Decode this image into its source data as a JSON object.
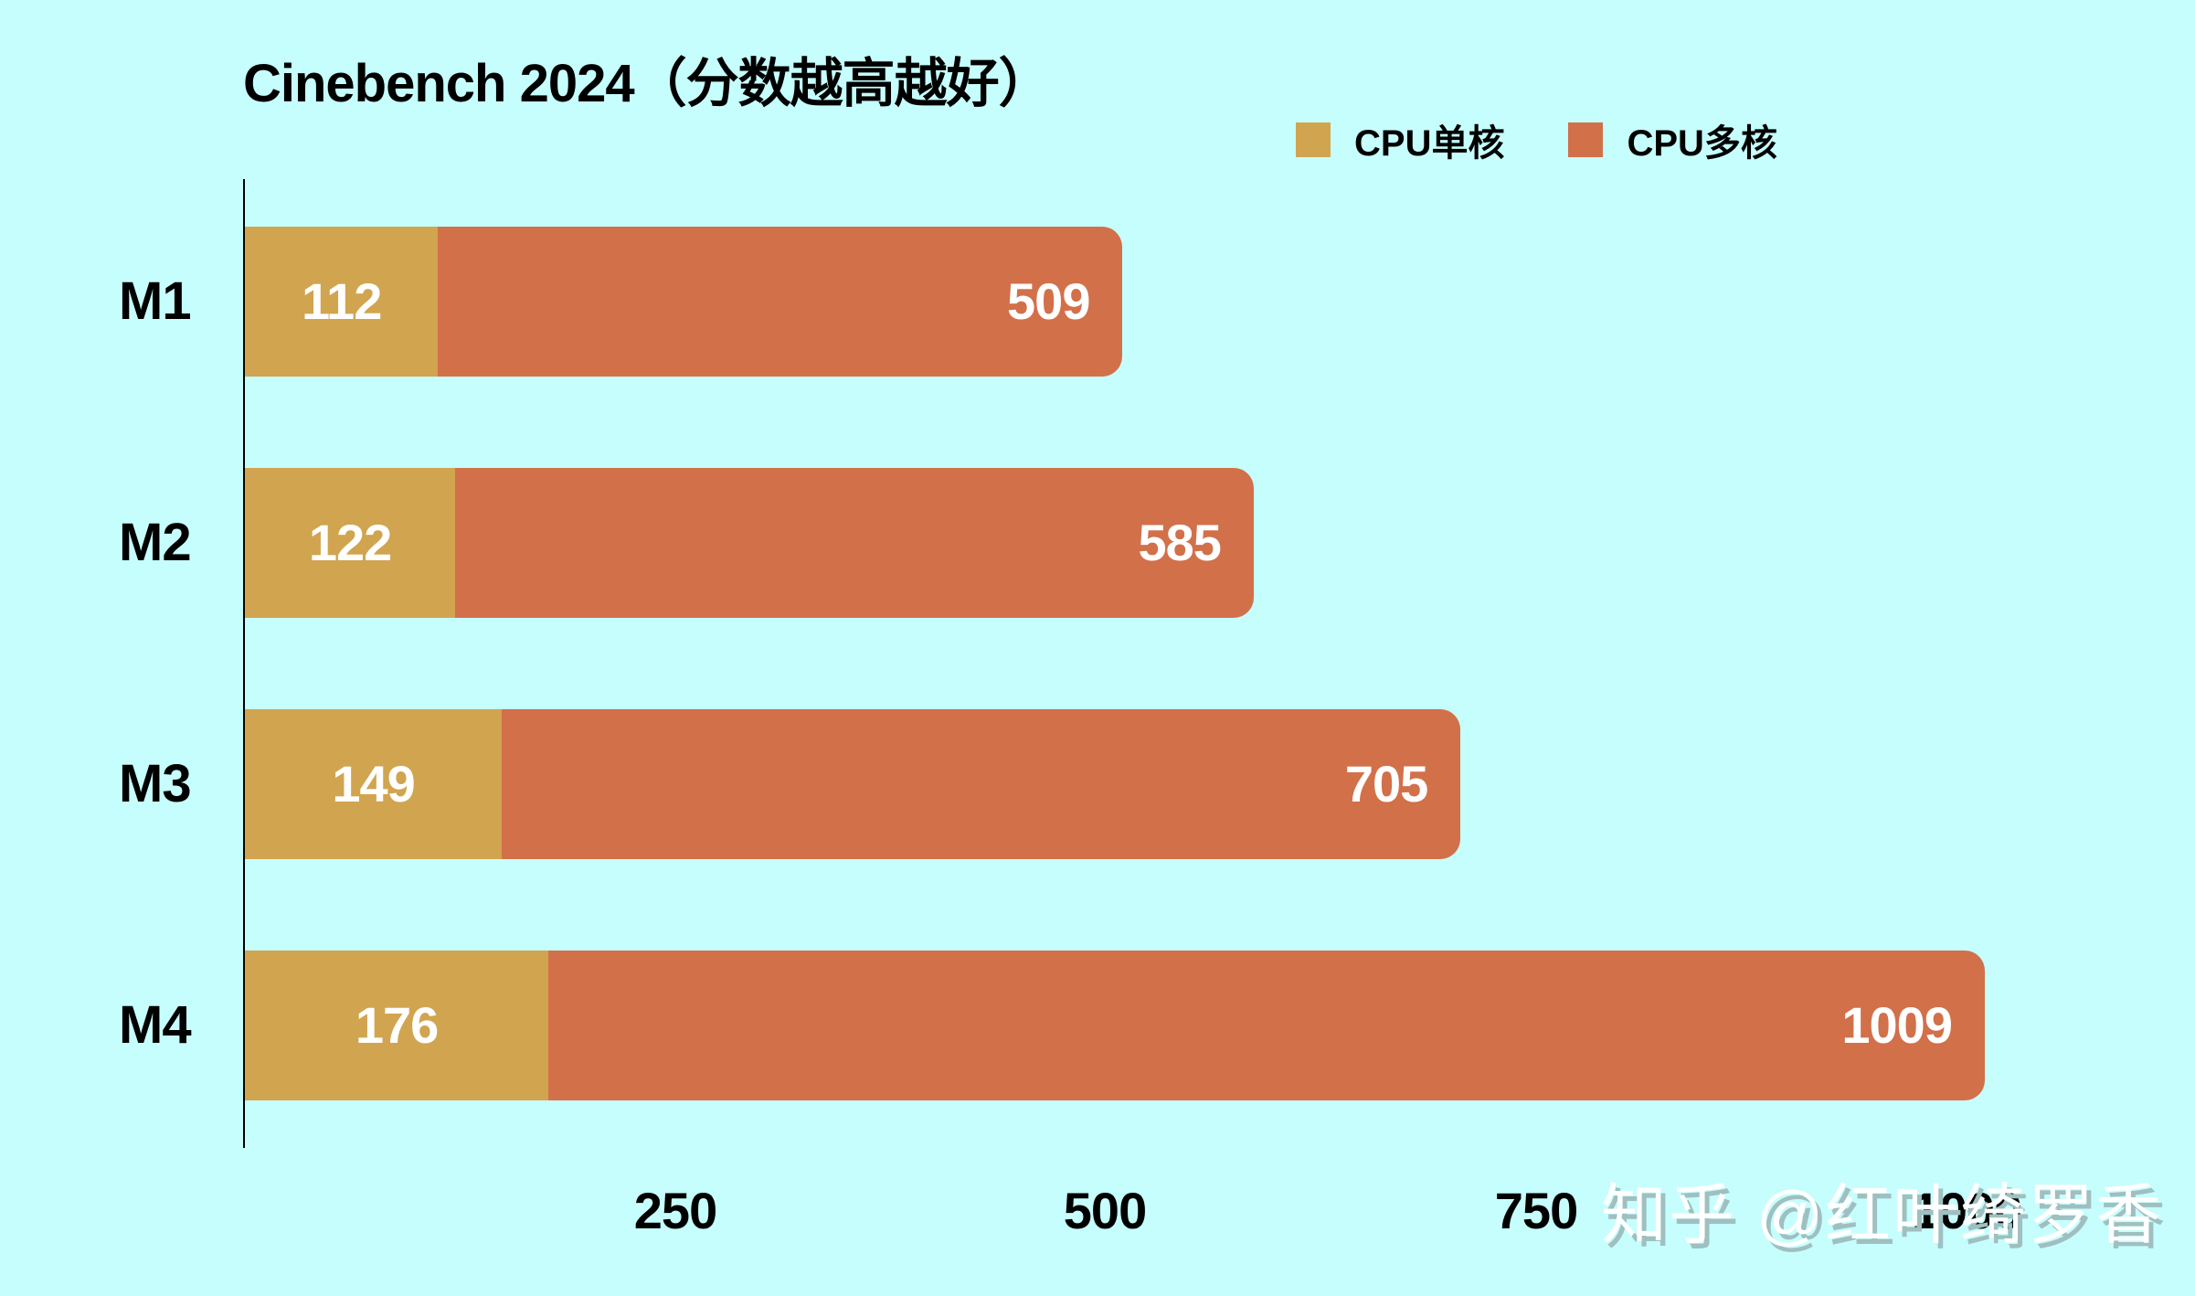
{
  "chart_data": {
    "type": "bar",
    "orientation": "horizontal",
    "stacked": "overlay",
    "title": "Cinebench 2024（分数越高越好）",
    "categories": [
      "M1",
      "M2",
      "M3",
      "M4"
    ],
    "series": [
      {
        "name": "CPU单核",
        "color": "#d1a44f",
        "values": [
          112,
          122,
          149,
          176
        ]
      },
      {
        "name": "CPU多核",
        "color": "#d2704a",
        "values": [
          509,
          585,
          705,
          1009
        ]
      }
    ],
    "xlabel": "",
    "ylabel": "",
    "xticks": [
      250,
      500,
      750,
      1000
    ],
    "xlim": [
      0,
      1000
    ],
    "grid": false,
    "legend_position": "top-right"
  },
  "title": "Cinebench 2024（分数越高越好）",
  "legend": [
    {
      "label": "CPU单核",
      "color": "#d1a44f"
    },
    {
      "label": "CPU多核",
      "color": "#d2704a"
    }
  ],
  "rows": [
    {
      "label": "M1",
      "single": "112",
      "multi": "509"
    },
    {
      "label": "M2",
      "single": "122",
      "multi": "585"
    },
    {
      "label": "M3",
      "single": "149",
      "multi": "705"
    },
    {
      "label": "M4",
      "single": "176",
      "multi": "1009"
    }
  ],
  "ticks": [
    "250",
    "500",
    "750",
    "1000"
  ],
  "watermark": "知乎 @红叶绮罗香"
}
